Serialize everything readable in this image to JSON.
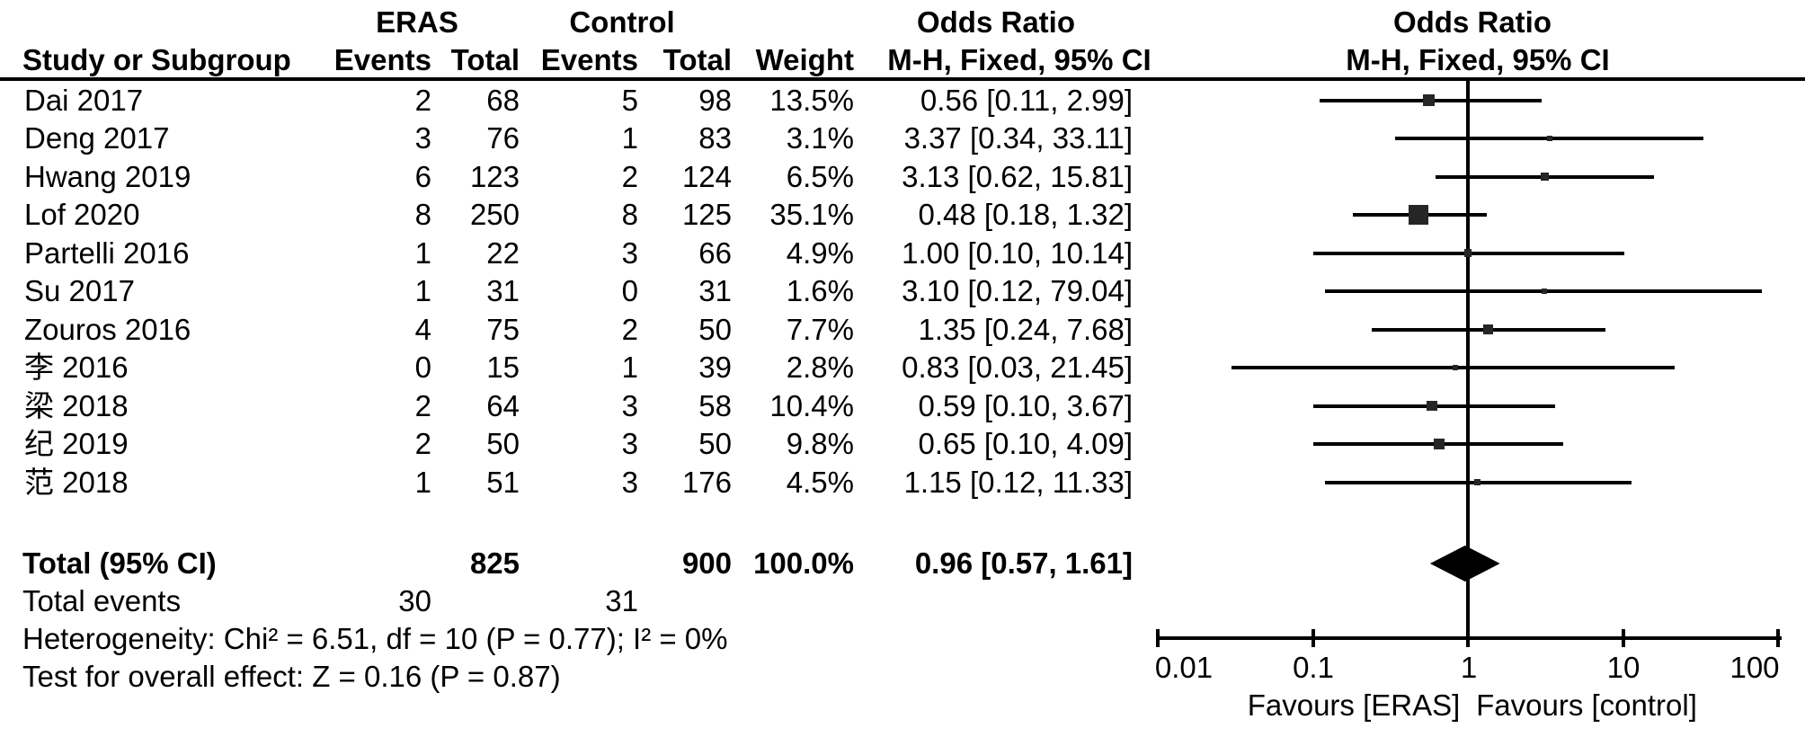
{
  "header": {
    "group_eras": "ERAS",
    "group_control": "Control",
    "or_title_text_col": "Odds Ratio",
    "or_title_plot_col": "Odds Ratio",
    "col_study": "Study or Subgroup",
    "col_events_eras": "Events",
    "col_total_eras": "Total",
    "col_events_control": "Events",
    "col_total_control": "Total",
    "col_weight": "Weight",
    "col_method_text": "M-H, Fixed, 95% CI",
    "col_method_plot": "M-H, Fixed, 95% CI"
  },
  "table": {
    "rows": [
      {
        "name": "Dai 2017",
        "eras_events": "2",
        "eras_total": "68",
        "control_events": "5",
        "control_total": "98",
        "weight": "13.5%",
        "or_ci": "0.56 [0.11, 2.99]"
      },
      {
        "name": "Deng 2017",
        "eras_events": "3",
        "eras_total": "76",
        "control_events": "1",
        "control_total": "83",
        "weight": "3.1%",
        "or_ci": "3.37 [0.34, 33.11]"
      },
      {
        "name": "Hwang 2019",
        "eras_events": "6",
        "eras_total": "123",
        "control_events": "2",
        "control_total": "124",
        "weight": "6.5%",
        "or_ci": "3.13 [0.62, 15.81]"
      },
      {
        "name": "Lof 2020",
        "eras_events": "8",
        "eras_total": "250",
        "control_events": "8",
        "control_total": "125",
        "weight": "35.1%",
        "or_ci": "0.48 [0.18, 1.32]"
      },
      {
        "name": "Partelli 2016",
        "eras_events": "1",
        "eras_total": "22",
        "control_events": "3",
        "control_total": "66",
        "weight": "4.9%",
        "or_ci": "1.00 [0.10, 10.14]"
      },
      {
        "name": "Su 2017",
        "eras_events": "1",
        "eras_total": "31",
        "control_events": "0",
        "control_total": "31",
        "weight": "1.6%",
        "or_ci": "3.10 [0.12, 79.04]"
      },
      {
        "name": "Zouros 2016",
        "eras_events": "4",
        "eras_total": "75",
        "control_events": "2",
        "control_total": "50",
        "weight": "7.7%",
        "or_ci": "1.35 [0.24, 7.68]"
      },
      {
        "name": "李 2016",
        "eras_events": "0",
        "eras_total": "15",
        "control_events": "1",
        "control_total": "39",
        "weight": "2.8%",
        "or_ci": "0.83 [0.03, 21.45]"
      },
      {
        "name": "梁 2018",
        "eras_events": "2",
        "eras_total": "64",
        "control_events": "3",
        "control_total": "58",
        "weight": "10.4%",
        "or_ci": "0.59 [0.10, 3.67]"
      },
      {
        "name": "纪 2019",
        "eras_events": "2",
        "eras_total": "50",
        "control_events": "3",
        "control_total": "50",
        "weight": "9.8%",
        "or_ci": "0.65 [0.10, 4.09]"
      },
      {
        "name": "范 2018",
        "eras_events": "1",
        "eras_total": "51",
        "control_events": "3",
        "control_total": "176",
        "weight": "4.5%",
        "or_ci": "1.15 [0.12, 11.33]"
      }
    ],
    "total_row": {
      "label": "Total (95% CI)",
      "eras_total": "825",
      "control_total": "900",
      "weight": "100.0%",
      "or_ci": "0.96 [0.57, 1.61]"
    },
    "total_events_row": {
      "label": "Total events",
      "eras": "30",
      "control": "31"
    },
    "heterogeneity": "Heterogeneity: Chi² = 6.51, df = 10 (P = 0.77); I² = 0%",
    "overall_effect": "Test for overall effect: Z = 0.16 (P = 0.87)"
  },
  "axis": {
    "tick_labels": [
      "0.01",
      "0.1",
      "1",
      "10",
      "100"
    ],
    "favours_left": "Favours [ERAS]",
    "favours_right": "Favours [control]"
  },
  "colors": {
    "ink": "#000000",
    "square": "#262626",
    "background": "#ffffff"
  },
  "chart_data": {
    "type": "scatter",
    "subtype": "forest-plot-meta-analysis",
    "title": "Odds Ratio  M-H, Fixed, 95% CI",
    "x_scale": "log10",
    "x_range": [
      0.01,
      100
    ],
    "x_ticks": [
      0.01,
      0.1,
      1,
      10,
      100
    ],
    "null_line": 1,
    "xlabel_left": "Favours [ERAS]",
    "xlabel_right": "Favours [control]",
    "series": [
      {
        "study": "Dai 2017",
        "or": 0.56,
        "ci_low": 0.11,
        "ci_high": 2.99,
        "weight_pct": 13.5
      },
      {
        "study": "Deng 2017",
        "or": 3.37,
        "ci_low": 0.34,
        "ci_high": 33.11,
        "weight_pct": 3.1
      },
      {
        "study": "Hwang 2019",
        "or": 3.13,
        "ci_low": 0.62,
        "ci_high": 15.81,
        "weight_pct": 6.5
      },
      {
        "study": "Lof 2020",
        "or": 0.48,
        "ci_low": 0.18,
        "ci_high": 1.32,
        "weight_pct": 35.1
      },
      {
        "study": "Partelli 2016",
        "or": 1.0,
        "ci_low": 0.1,
        "ci_high": 10.14,
        "weight_pct": 4.9
      },
      {
        "study": "Su 2017",
        "or": 3.1,
        "ci_low": 0.12,
        "ci_high": 79.04,
        "weight_pct": 1.6
      },
      {
        "study": "Zouros 2016",
        "or": 1.35,
        "ci_low": 0.24,
        "ci_high": 7.68,
        "weight_pct": 7.7
      },
      {
        "study": "李 2016",
        "or": 0.83,
        "ci_low": 0.03,
        "ci_high": 21.45,
        "weight_pct": 2.8
      },
      {
        "study": "梁 2018",
        "or": 0.59,
        "ci_low": 0.1,
        "ci_high": 3.67,
        "weight_pct": 10.4
      },
      {
        "study": "纪 2019",
        "or": 0.65,
        "ci_low": 0.1,
        "ci_high": 4.09,
        "weight_pct": 9.8
      },
      {
        "study": "范 2018",
        "or": 1.15,
        "ci_low": 0.12,
        "ci_high": 11.33,
        "weight_pct": 4.5
      }
    ],
    "summary": {
      "label": "Total (95% CI)",
      "or": 0.96,
      "ci_low": 0.57,
      "ci_high": 1.61,
      "weight_pct": 100.0,
      "eras_events_total": 30,
      "eras_n": 825,
      "control_events_total": 31,
      "control_n": 900,
      "heterogeneity": {
        "chi2": 6.51,
        "df": 10,
        "p": 0.77,
        "i2_pct": 0
      },
      "overall_effect": {
        "z": 0.16,
        "p": 0.87
      }
    }
  }
}
